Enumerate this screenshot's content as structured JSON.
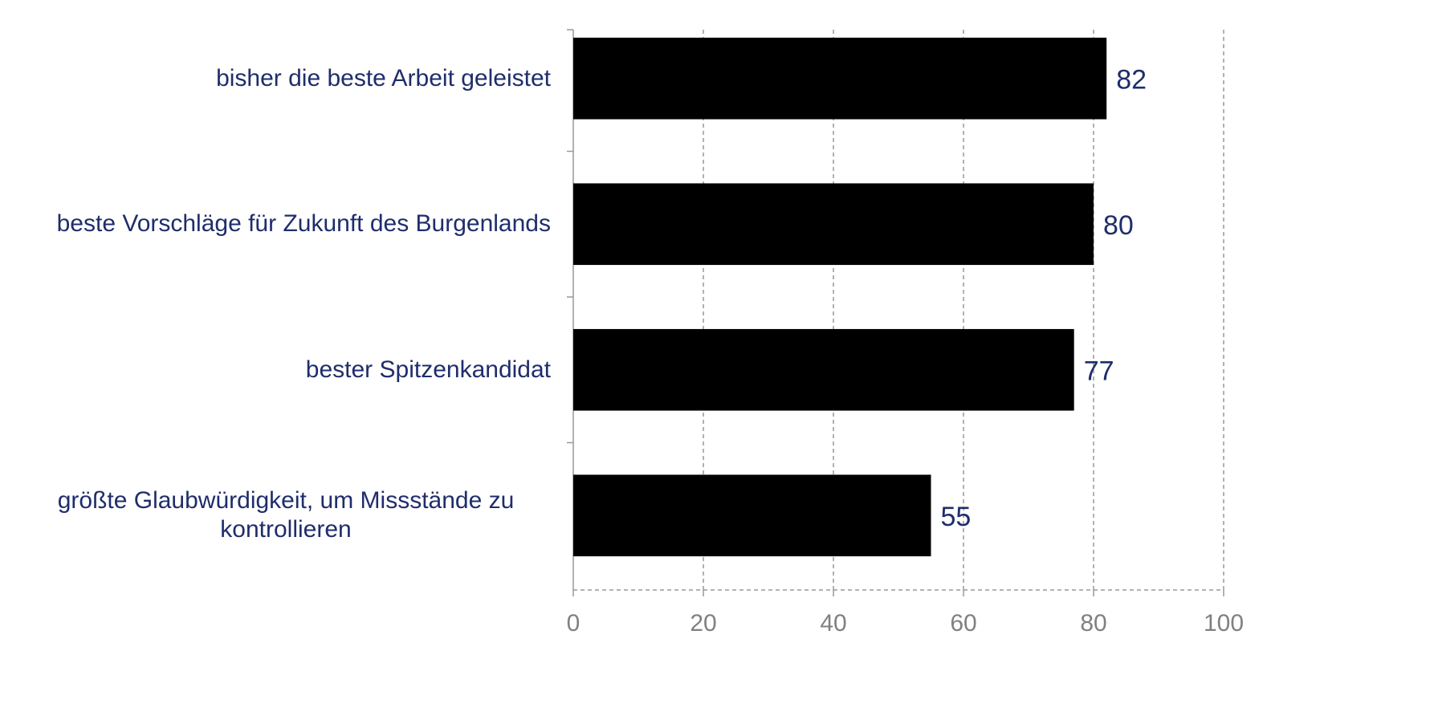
{
  "chart_data": {
    "type": "bar",
    "categories": [
      "bisher die beste Arbeit geleistet",
      "beste Vorschläge für Zukunft des Burgenlands",
      "bester Spitzenkandidat",
      "größte Glaubwürdigkeit, um Missstände zu kontrollieren"
    ],
    "values": [
      82,
      80,
      77,
      55
    ],
    "color": "#000000",
    "xlim": [
      0,
      100
    ],
    "xticks": [
      0,
      20,
      40,
      60,
      80,
      100
    ],
    "grid": true
  }
}
